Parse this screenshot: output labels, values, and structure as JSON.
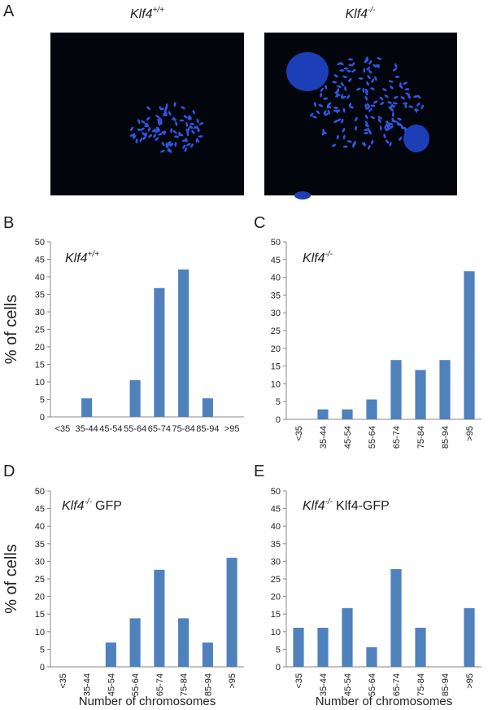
{
  "panel_a": {
    "label": "A",
    "image_titles": [
      {
        "name": "Klf4",
        "superscript": "+/+"
      },
      {
        "name": "Klf4",
        "superscript": "-/-"
      }
    ]
  },
  "chart_data": [
    {
      "type": "bar",
      "panel": "B",
      "title": {
        "name": "Klf4",
        "superscript": "+/+"
      },
      "ylabel": "% of cells",
      "categories": [
        "<35",
        "35-44",
        "45-54",
        "55-64",
        "65-74",
        "75-84",
        "85-94",
        ">95"
      ],
      "values": [
        0,
        5.3,
        0,
        10.5,
        36.8,
        42.1,
        5.3,
        0
      ],
      "color": "#4f81bd",
      "rotated_labels": false,
      "ylim": [
        0,
        50
      ],
      "yticks": [
        0,
        5,
        10,
        15,
        20,
        25,
        30,
        35,
        40,
        45,
        50
      ]
    },
    {
      "type": "bar",
      "panel": "C",
      "title": {
        "name": "Klf4",
        "superscript": "-/-"
      },
      "categories": [
        "<35",
        "35-44",
        "45-54",
        "55-64",
        "65-74",
        "75-84",
        "85-94",
        ">95"
      ],
      "values": [
        0,
        2.8,
        2.8,
        5.6,
        16.7,
        13.9,
        16.7,
        41.7
      ],
      "color": "#4f81bd",
      "rotated_labels": true,
      "ylim": [
        0,
        50
      ],
      "yticks": [
        0,
        5,
        10,
        15,
        20,
        25,
        30,
        35,
        40,
        45,
        50
      ]
    },
    {
      "type": "bar",
      "panel": "D",
      "title": {
        "name": "Klf4",
        "superscript": "-/-",
        "suffix": "GFP"
      },
      "ylabel": "% of cells",
      "xlabel": "Number of chromosomes",
      "categories": [
        "<35",
        "35-44",
        "45-54",
        "55-64",
        "65-74",
        "75-84",
        "85-94",
        ">95"
      ],
      "values": [
        0,
        0,
        6.9,
        13.8,
        27.6,
        13.8,
        6.9,
        31.0
      ],
      "color": "#4f81bd",
      "rotated_labels": true,
      "ylim": [
        0,
        50
      ],
      "yticks": [
        0,
        5,
        10,
        15,
        20,
        25,
        30,
        35,
        40,
        45,
        50
      ]
    },
    {
      "type": "bar",
      "panel": "E",
      "title": {
        "name": "Klf4",
        "superscript": "-/-",
        "suffix": "Klf4-GFP"
      },
      "xlabel": "Number of chromosomes",
      "categories": [
        "<35",
        "35-44",
        "45-54",
        "55-64",
        "65-74",
        "75-84",
        "85-94",
        ">95"
      ],
      "values": [
        11.1,
        11.1,
        16.7,
        5.6,
        27.8,
        11.1,
        0,
        16.7
      ],
      "color": "#4f81bd",
      "rotated_labels": true,
      "ylim": [
        0,
        50
      ],
      "yticks": [
        0,
        5,
        10,
        15,
        20,
        25,
        30,
        35,
        40,
        45,
        50
      ]
    }
  ]
}
